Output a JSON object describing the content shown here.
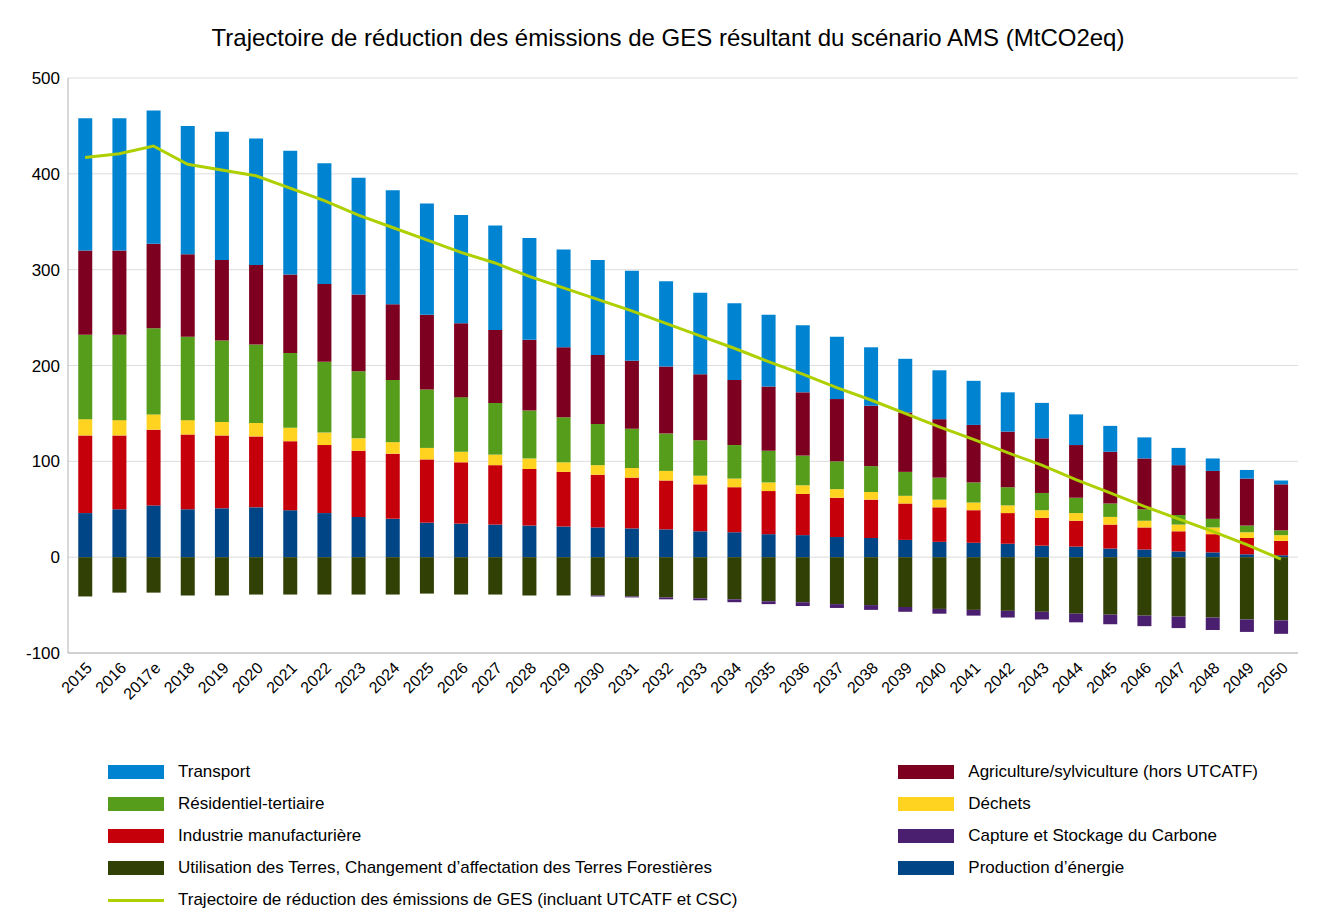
{
  "chart_data": {
    "type": "bar",
    "title": "Trajectoire de réduction des émissions de GES résultant du scénario AMS (MtCO2eq)",
    "stacked": true,
    "grid": true,
    "legend": "bottom",
    "categories": [
      "2015",
      "2016",
      "2017e",
      "2018",
      "2019",
      "2020",
      "2021",
      "2022",
      "2023",
      "2024",
      "2025",
      "2026",
      "2027",
      "2028",
      "2029",
      "2030",
      "2031",
      "2032",
      "2033",
      "2034",
      "2035",
      "2036",
      "2037",
      "2038",
      "2039",
      "2040",
      "2041",
      "2042",
      "2043",
      "2044",
      "2045",
      "2046",
      "2047",
      "2048",
      "2049",
      "2050"
    ],
    "ylim": [
      -100,
      500
    ],
    "yticks": [
      -100,
      0,
      100,
      200,
      300,
      400,
      500
    ],
    "series": [
      {
        "name": "Production d’énergie",
        "type": "bar",
        "color": "#004586",
        "values": [
          46,
          50,
          54,
          50,
          51,
          52,
          49,
          46,
          42,
          40,
          36,
          35,
          34,
          33,
          32,
          31,
          30,
          29,
          27,
          26,
          24,
          23,
          21,
          20,
          18,
          16,
          15,
          14,
          12,
          11,
          9,
          8,
          6,
          5,
          3,
          2
        ]
      },
      {
        "name": "Industrie manufacturière",
        "type": "bar",
        "color": "#c5000b",
        "values": [
          81,
          77,
          79,
          78,
          76,
          74,
          72,
          71,
          69,
          68,
          66,
          64,
          62,
          59,
          57,
          55,
          53,
          51,
          49,
          47,
          45,
          43,
          41,
          40,
          38,
          36,
          34,
          32,
          29,
          27,
          25,
          23,
          21,
          19,
          17,
          15
        ]
      },
      {
        "name": "Déchets",
        "type": "bar",
        "color": "#ffd320",
        "values": [
          17,
          16,
          16,
          15,
          14,
          14,
          14,
          13,
          13,
          12,
          12,
          11,
          11,
          11,
          10,
          10,
          10,
          10,
          9,
          9,
          9,
          9,
          9,
          8,
          8,
          8,
          8,
          8,
          8,
          8,
          8,
          7,
          7,
          7,
          6,
          6
        ]
      },
      {
        "name": "Résidentiel-tertiaire",
        "type": "bar",
        "color": "#579d1c",
        "values": [
          88,
          89,
          90,
          87,
          85,
          82,
          78,
          74,
          70,
          65,
          61,
          57,
          54,
          50,
          47,
          43,
          41,
          39,
          37,
          35,
          33,
          31,
          29,
          27,
          25,
          23,
          21,
          19,
          18,
          16,
          14,
          12,
          10,
          9,
          7,
          5
        ]
      },
      {
        "name": "Agriculture/sylviculture (hors UTCATF)",
        "type": "bar",
        "color": "#7e0021",
        "values": [
          88,
          88,
          88,
          86,
          84,
          83,
          82,
          81,
          80,
          79,
          78,
          77,
          76,
          74,
          73,
          72,
          71,
          70,
          69,
          68,
          67,
          66,
          65,
          63,
          62,
          61,
          60,
          58,
          57,
          55,
          54,
          53,
          52,
          50,
          49,
          48
        ]
      },
      {
        "name": "Transport",
        "type": "bar",
        "color": "#0084d1",
        "values": [
          138,
          138,
          139,
          134,
          134,
          132,
          129,
          126,
          122,
          119,
          116,
          113,
          109,
          106,
          102,
          99,
          94,
          89,
          85,
          80,
          75,
          70,
          65,
          61,
          56,
          51,
          46,
          41,
          37,
          32,
          27,
          22,
          18,
          13,
          9,
          4
        ]
      },
      {
        "name": "Utilisation des Terres, Changement d’affectation des Terres Forestières",
        "type": "bar",
        "color": "#314004",
        "values": [
          -41,
          -37,
          -37,
          -40,
          -40,
          -39,
          -39,
          -39,
          -39,
          -39,
          -38,
          -39,
          -39,
          -40,
          -40,
          -40,
          -41,
          -42,
          -43,
          -44,
          -46,
          -47,
          -49,
          -50,
          -52,
          -54,
          -55,
          -56,
          -57,
          -59,
          -60,
          -61,
          -62,
          -63,
          -65,
          -66
        ]
      },
      {
        "name": "Capture et Stockage du Carbone",
        "type": "bar",
        "color": "#4b1f6f",
        "values": [
          0,
          0,
          0,
          0,
          0,
          0,
          0,
          0,
          0,
          0,
          0,
          0,
          0,
          0,
          0,
          -1,
          -1,
          -2,
          -2,
          -3,
          -3,
          -4,
          -4,
          -5,
          -5,
          -5,
          -6,
          -7,
          -8,
          -9,
          -10,
          -11,
          -12,
          -13,
          -13,
          -14
        ]
      },
      {
        "name": "Trajectoire de réduction des émissions de GES (incluant UTCATF et CSC)",
        "type": "line",
        "color": "#aecf00",
        "values": [
          417,
          421,
          429,
          410,
          404,
          398,
          385,
          372,
          357,
          344,
          331,
          318,
          307,
          293,
          281,
          269,
          257,
          244,
          231,
          218,
          204,
          191,
          177,
          164,
          150,
          136,
          123,
          109,
          96,
          81,
          67,
          53,
          40,
          27,
          13,
          -2
        ]
      }
    ]
  }
}
